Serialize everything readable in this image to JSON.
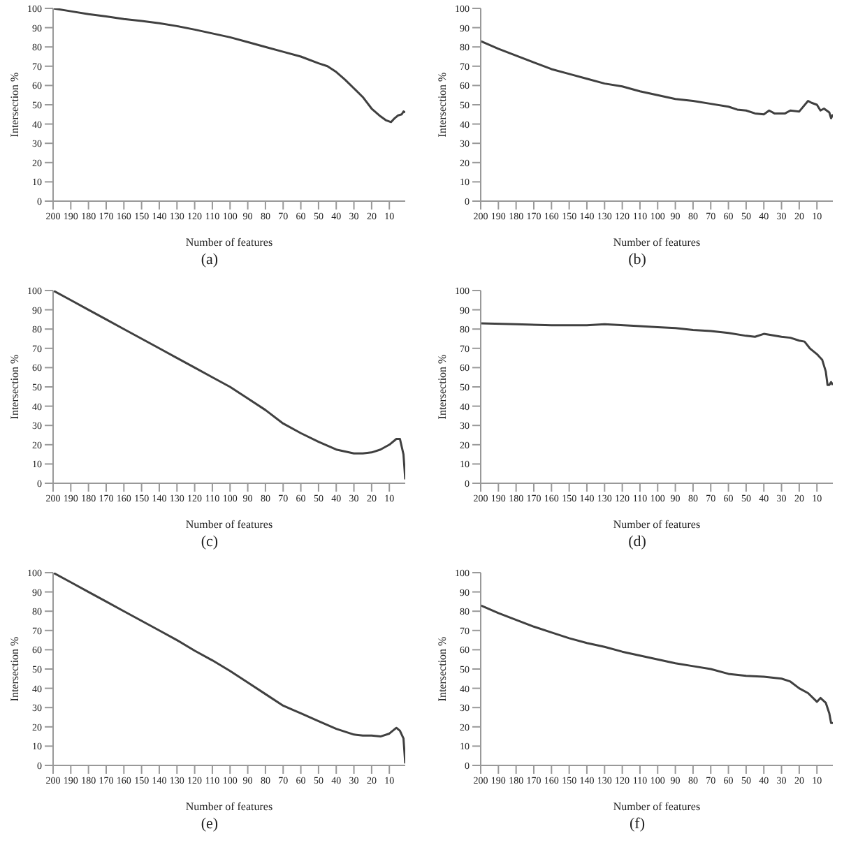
{
  "chart_data": [
    {
      "type": "line",
      "color": "#404040",
      "xlabel": "Number of features",
      "ylabel": "Intersection %",
      "annotations": [
        "(a)"
      ],
      "xlim": [
        200,
        1
      ],
      "ylim": [
        0,
        100
      ],
      "xticks": [
        200,
        190,
        180,
        170,
        160,
        150,
        140,
        130,
        120,
        110,
        100,
        90,
        80,
        70,
        60,
        50,
        40,
        30,
        20,
        10
      ],
      "yticks": [
        0,
        10,
        20,
        30,
        40,
        50,
        60,
        70,
        80,
        90,
        100
      ],
      "x": [
        200,
        190,
        180,
        170,
        160,
        150,
        140,
        130,
        120,
        110,
        100,
        90,
        80,
        70,
        60,
        50,
        45,
        40,
        35,
        30,
        25,
        20,
        15,
        12,
        9,
        7,
        5,
        3,
        2,
        1
      ],
      "values": [
        100,
        98.5,
        97,
        95.8,
        94.5,
        93.5,
        92.3,
        90.8,
        89,
        87,
        85,
        82.5,
        80,
        77.5,
        75,
        71.5,
        70,
        67,
        63,
        58.5,
        54,
        48,
        44,
        42,
        41,
        43,
        44.5,
        45,
        46.5,
        46
      ]
    },
    {
      "type": "line",
      "color": "#404040",
      "xlabel": "Number of features",
      "ylabel": "Intersection %",
      "annotations": [
        "(b)"
      ],
      "xlim": [
        200,
        1
      ],
      "ylim": [
        0,
        100
      ],
      "xticks": [
        200,
        190,
        180,
        170,
        160,
        150,
        140,
        130,
        120,
        110,
        100,
        90,
        80,
        70,
        60,
        50,
        40,
        30,
        20,
        10
      ],
      "yticks": [
        0,
        10,
        20,
        30,
        40,
        50,
        60,
        70,
        80,
        90,
        100
      ],
      "x": [
        200,
        190,
        180,
        170,
        160,
        150,
        140,
        130,
        120,
        110,
        100,
        90,
        80,
        70,
        60,
        55,
        50,
        45,
        40,
        37,
        34,
        28,
        25,
        20,
        15,
        13,
        10,
        8,
        6,
        3,
        2,
        1
      ],
      "values": [
        83,
        79,
        75.5,
        72,
        68.5,
        66,
        63.5,
        61,
        59.5,
        57,
        55,
        53,
        52,
        50.5,
        49,
        47.5,
        47,
        45.5,
        45,
        47,
        45.5,
        45.5,
        47,
        46.5,
        52,
        51,
        50,
        47,
        48,
        46,
        43,
        45
      ]
    },
    {
      "type": "line",
      "color": "#404040",
      "xlabel": "Number of features",
      "ylabel": "Intersection %",
      "annotations": [
        "(c)"
      ],
      "xlim": [
        200,
        1
      ],
      "ylim": [
        0,
        100
      ],
      "xticks": [
        200,
        190,
        180,
        170,
        160,
        150,
        140,
        130,
        120,
        110,
        100,
        90,
        80,
        70,
        60,
        50,
        40,
        30,
        20,
        10
      ],
      "yticks": [
        0,
        10,
        20,
        30,
        40,
        50,
        60,
        70,
        80,
        90,
        100
      ],
      "x": [
        200,
        190,
        180,
        170,
        160,
        150,
        140,
        130,
        120,
        110,
        100,
        90,
        80,
        70,
        60,
        50,
        40,
        30,
        25,
        20,
        15,
        10,
        6,
        4,
        2,
        1
      ],
      "values": [
        100,
        95,
        90,
        85,
        80,
        75,
        70,
        65,
        60,
        55,
        50,
        44,
        38,
        31,
        26,
        21.5,
        17.5,
        15.5,
        15.5,
        16,
        17.5,
        20,
        23,
        23,
        15,
        2
      ]
    },
    {
      "type": "line",
      "color": "#404040",
      "xlabel": "Number of features",
      "ylabel": "Intersection %",
      "annotations": [
        "(d)"
      ],
      "xlim": [
        200,
        1
      ],
      "ylim": [
        0,
        100
      ],
      "xticks": [
        200,
        190,
        180,
        170,
        160,
        150,
        140,
        130,
        120,
        110,
        100,
        90,
        80,
        70,
        60,
        50,
        40,
        30,
        20,
        10
      ],
      "yticks": [
        0,
        10,
        20,
        30,
        40,
        50,
        60,
        70,
        80,
        90,
        100
      ],
      "x": [
        200,
        180,
        160,
        140,
        130,
        110,
        100,
        90,
        80,
        70,
        60,
        50,
        45,
        40,
        30,
        25,
        20,
        17,
        14,
        10,
        7,
        5,
        4,
        3,
        2,
        1
      ],
      "values": [
        83,
        82.5,
        82,
        82,
        82.5,
        81.5,
        81,
        80.5,
        79.5,
        79,
        78,
        76.5,
        76,
        77.5,
        76,
        75.5,
        74,
        73.5,
        70,
        67,
        64,
        58,
        51,
        51,
        52.5,
        51
      ]
    },
    {
      "type": "line",
      "color": "#404040",
      "xlabel": "Number of features",
      "ylabel": "Intersection %",
      "annotations": [
        "(e)"
      ],
      "xlim": [
        200,
        1
      ],
      "ylim": [
        0,
        100
      ],
      "xticks": [
        200,
        190,
        180,
        170,
        160,
        150,
        140,
        130,
        120,
        110,
        100,
        90,
        80,
        70,
        60,
        50,
        40,
        30,
        20,
        10
      ],
      "yticks": [
        0,
        10,
        20,
        30,
        40,
        50,
        60,
        70,
        80,
        90,
        100
      ],
      "x": [
        200,
        190,
        180,
        170,
        160,
        150,
        140,
        130,
        120,
        110,
        100,
        90,
        80,
        70,
        60,
        50,
        40,
        30,
        25,
        20,
        15,
        10,
        6,
        4,
        2,
        1
      ],
      "values": [
        100,
        95,
        90,
        85,
        80,
        75,
        70,
        65,
        59.5,
        54.5,
        49,
        43,
        37,
        31,
        27,
        23,
        19,
        16,
        15.5,
        15.5,
        15,
        16.5,
        19.5,
        18,
        14,
        1
      ]
    },
    {
      "type": "line",
      "color": "#404040",
      "xlabel": "Number of features",
      "ylabel": "Intersection %",
      "annotations": [
        "(f)"
      ],
      "xlim": [
        200,
        1
      ],
      "ylim": [
        0,
        100
      ],
      "xticks": [
        200,
        190,
        180,
        170,
        160,
        150,
        140,
        130,
        120,
        110,
        100,
        90,
        80,
        70,
        60,
        50,
        40,
        30,
        20,
        10
      ],
      "yticks": [
        0,
        10,
        20,
        30,
        40,
        50,
        60,
        70,
        80,
        90,
        100
      ],
      "x": [
        200,
        190,
        180,
        170,
        160,
        150,
        140,
        130,
        120,
        110,
        100,
        90,
        80,
        70,
        60,
        50,
        40,
        30,
        25,
        20,
        15,
        10,
        8,
        5,
        3,
        2,
        1
      ],
      "values": [
        83,
        79,
        75.5,
        72,
        69,
        66,
        63.5,
        61.5,
        59,
        57,
        55,
        53,
        51.5,
        50,
        47.5,
        46.5,
        46,
        45,
        43.5,
        40,
        37.5,
        33,
        35,
        32.5,
        27,
        22,
        22
      ]
    }
  ]
}
